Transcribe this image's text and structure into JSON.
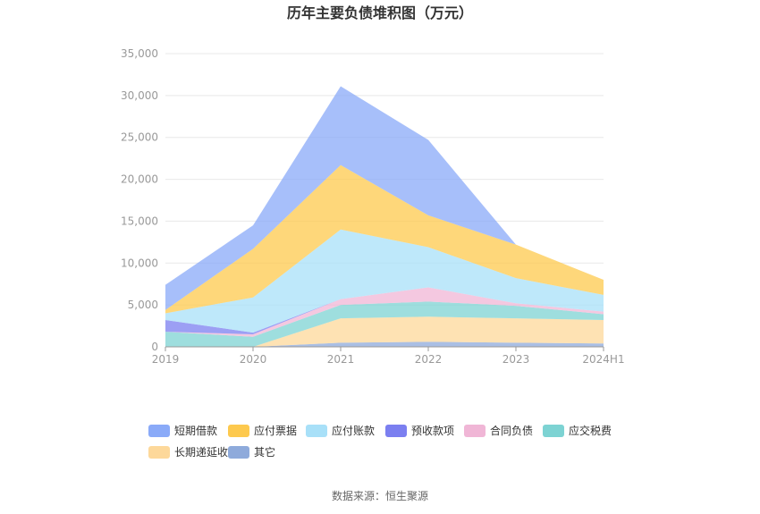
{
  "chart_data": {
    "type": "area",
    "stacked": true,
    "title": "历年主要负债堆积图（万元）",
    "categories": [
      "2019",
      "2020",
      "2021",
      "2022",
      "2023",
      "2024H1"
    ],
    "y_ticks": [
      "0",
      "5,000",
      "10,000",
      "15,000",
      "20,000",
      "25,000",
      "30,000",
      "35,000"
    ],
    "ylim": [
      0,
      35000
    ],
    "grid": true,
    "legend_position": "bottom",
    "series": [
      {
        "name": "其它",
        "color": "#8eaadb",
        "values": [
          0,
          0,
          500,
          600,
          500,
          400
        ]
      },
      {
        "name": "长期递延收益",
        "color": "#fdd89a",
        "values": [
          0,
          0,
          2900,
          3000,
          2900,
          2800
        ]
      },
      {
        "name": "应交税费",
        "color": "#7dd3d3",
        "values": [
          1800,
          1200,
          1600,
          1800,
          1500,
          700
        ]
      },
      {
        "name": "合同负债",
        "color": "#f0b6d6",
        "values": [
          0,
          300,
          700,
          1700,
          300,
          300
        ]
      },
      {
        "name": "预收款项",
        "color": "#7b7ff0",
        "values": [
          1400,
          200,
          0,
          0,
          0,
          0
        ]
      },
      {
        "name": "应付账款",
        "color": "#a8e0f8",
        "values": [
          800,
          4200,
          8300,
          4800,
          3000,
          2000
        ]
      },
      {
        "name": "应付票据",
        "color": "#fdc94e",
        "values": [
          400,
          5800,
          7700,
          3800,
          4000,
          1800
        ]
      },
      {
        "name": "短期借款",
        "color": "#8aaaf8",
        "values": [
          3000,
          2800,
          9400,
          9000,
          0,
          0
        ]
      }
    ],
    "legend_order": [
      "短期借款",
      "应付票据",
      "应付账款",
      "预收款项",
      "合同负债",
      "应交税费",
      "长期递延收益",
      "其它"
    ]
  },
  "source_label": "数据来源：恒生聚源"
}
